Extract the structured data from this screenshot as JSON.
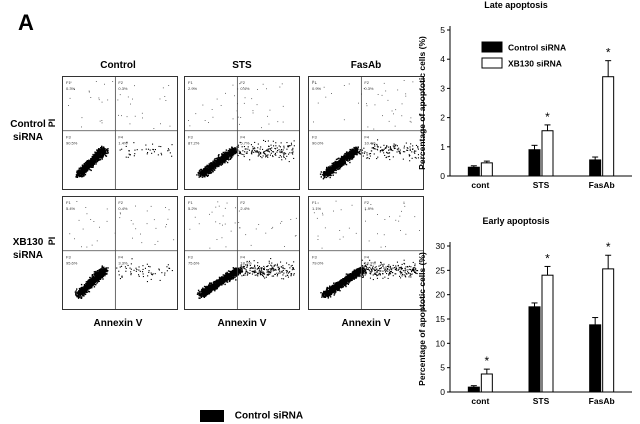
{
  "figure": {
    "panel_letter": "A",
    "column_labels": [
      "Control",
      "STS",
      "FasAb"
    ],
    "row_labels": [
      {
        "line1": "Control",
        "line2": "siRNA"
      },
      {
        "line1": "XB130",
        "line2": "siRNA"
      }
    ],
    "y_axis_label": "PI",
    "x_axis_label": "Annexin V",
    "bottom_legend": "Control siRNA",
    "colors": {
      "control": "#000000",
      "xb130": "#ffffff"
    }
  },
  "chart_data": [
    {
      "type": "bar",
      "title": "Late apoptosis",
      "ylabel": "Percentage of apoptotic cells (%)",
      "ylim": [
        0,
        5
      ],
      "yticks": [
        0,
        1,
        2,
        3,
        4,
        5
      ],
      "categories": [
        "cont",
        "STS",
        "FasAb"
      ],
      "series": [
        {
          "name": "Control siRNA",
          "values": [
            0.3,
            0.9,
            0.55
          ],
          "errors": [
            0.05,
            0.15,
            0.1
          ],
          "color": "#000000"
        },
        {
          "name": "XB130 siRNA",
          "values": [
            0.45,
            1.55,
            3.4
          ],
          "errors": [
            0.06,
            0.2,
            0.55
          ],
          "color": "#ffffff"
        }
      ],
      "significance": [
        {
          "category": "STS",
          "series": "XB130 siRNA",
          "label": "*"
        },
        {
          "category": "FasAb",
          "series": "XB130 siRNA",
          "label": "*"
        }
      ],
      "legend": "top-left"
    },
    {
      "type": "bar",
      "title": "Early apoptosis",
      "ylabel": "Percentage of apoptotic cells (%)",
      "ylim": [
        0,
        30
      ],
      "yticks": [
        0,
        5,
        10,
        15,
        20,
        25,
        30
      ],
      "categories": [
        "cont",
        "STS",
        "FasAb"
      ],
      "series": [
        {
          "values": [
            1.0,
            17.5,
            13.8
          ],
          "errors": [
            0.3,
            0.8,
            1.5
          ],
          "color": "#000000"
        },
        {
          "values": [
            3.7,
            24.0,
            25.3
          ],
          "errors": [
            1.0,
            1.8,
            2.8
          ],
          "color": "#ffffff"
        }
      ],
      "significance": [
        {
          "category": "cont",
          "series": 1,
          "label": "*"
        },
        {
          "category": "STS",
          "series": 1,
          "label": "*"
        },
        {
          "category": "FasAb",
          "series": 1,
          "label": "*"
        }
      ]
    }
  ],
  "flow_plots": {
    "quadrant_labels": [
      "F1",
      "F2",
      "F3",
      "F4"
    ],
    "plots": [
      {
        "row": 0,
        "col": 0,
        "q": [
          "0.3%",
          "0.3%",
          "90.5%",
          "1.4%"
        ]
      },
      {
        "row": 0,
        "col": 1,
        "q": [
          "2.9%",
          "0.4%",
          "87.2%",
          "5.7%"
        ]
      },
      {
        "row": 0,
        "col": 2,
        "q": [
          "0.9%",
          "0.3%",
          "90.0%",
          "10.4%"
        ]
      },
      {
        "row": 1,
        "col": 0,
        "q": [
          "5.4%",
          "0.4%",
          "95.6%",
          "3.3%"
        ]
      },
      {
        "row": 1,
        "col": 1,
        "q": [
          "5.2%",
          "2.4%",
          "75.6%",
          "18.1%"
        ]
      },
      {
        "row": 1,
        "col": 2,
        "q": [
          "1.1%",
          "1.9%",
          "79.0%",
          "18.3%"
        ]
      }
    ]
  }
}
